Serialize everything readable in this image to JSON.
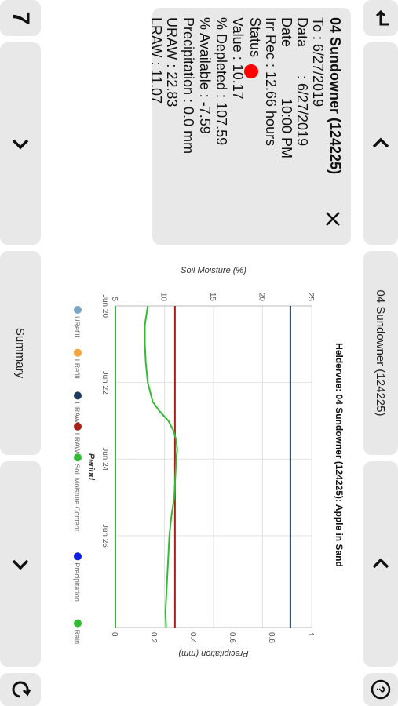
{
  "nav": {
    "back_icon": "return-arrow-icon",
    "badge": "7",
    "refresh_icon": "refresh-icon",
    "help_icon": "help-icon",
    "prev_icon": "chevron-left-icon",
    "next_icon": "chevron-right-icon",
    "summary_label": "Summary",
    "station_label": "04 Sundowner (124225)"
  },
  "info": {
    "title": "04 Sundowner (124225)",
    "close_icon": "close-icon",
    "to": "To : 6/27/2019",
    "data_date_label": "Data",
    "data_date_value": ": 6/27/2019",
    "date_label": "Date",
    "time_value": "10:00 PM",
    "irr_rec": "Irr Rec : 12.66 hours",
    "status_label": "Status",
    "status_color": "#ff0000",
    "value": "Value : 10.17",
    "pct_depleted": "% Depleted : 107.59",
    "pct_available": "% Available : -7.59",
    "precipitation": "Precipitation : 0.0 mm",
    "uraw": "URAW : 22.83",
    "lraw": "LRAW : 11.07"
  },
  "chart_data": {
    "type": "line",
    "title": "Heldervue: 04 Sundowner (124225): Apple in Sand",
    "xlabel": "Period",
    "ylabel": "Soil Moisture (%)",
    "y2label": "Precipitation (mm)",
    "x_ticks": [
      "Jun 20",
      "Jun 22",
      "Jun 24",
      "Jun 26"
    ],
    "xlim": [
      "Jun 20",
      "Jun 28 10:00"
    ],
    "ylim": [
      5,
      25
    ],
    "y_ticks": [
      5,
      10,
      15,
      20,
      25
    ],
    "y2lim": [
      0,
      1
    ],
    "y2_ticks": [
      0,
      0.2,
      0.4,
      0.6,
      0.8,
      1
    ],
    "grid": true,
    "legend_position": "bottom",
    "legend": [
      {
        "name": "URefill",
        "color": "#7aa6c9"
      },
      {
        "name": "LRefill",
        "color": "#f5a33e"
      },
      {
        "name": "URAW",
        "color": "#1f3c5e"
      },
      {
        "name": "LRAW",
        "color": "#a8201a"
      },
      {
        "name": "Soil Moisture Content",
        "color": "#33bb33"
      },
      {
        "name": "Precipitation",
        "color": "#1020e0"
      },
      {
        "name": "Rain",
        "color": "#33bb33"
      }
    ],
    "series": [
      {
        "name": "URAW",
        "color": "#1f3c5e",
        "x_days": [
          0,
          8.4
        ],
        "values": [
          22.83,
          22.83
        ]
      },
      {
        "name": "LRAW",
        "color": "#a8201a",
        "x_days": [
          0,
          8.4
        ],
        "values": [
          11.07,
          11.07
        ]
      },
      {
        "name": "Soil Moisture Content",
        "color": "#33bb33",
        "x_days": [
          0,
          0.5,
          1.0,
          1.5,
          2.0,
          2.5,
          2.75,
          3.0,
          3.25,
          3.5,
          3.75,
          4.0,
          4.5,
          5.0,
          5.5,
          6.0,
          6.5,
          7.0,
          7.5,
          8.0,
          8.4
        ],
        "values": [
          8.3,
          8.0,
          8.0,
          8.1,
          8.3,
          8.8,
          9.5,
          10.4,
          10.9,
          11.2,
          11.3,
          11.2,
          11.1,
          11.0,
          10.7,
          10.5,
          10.4,
          10.3,
          10.2,
          10.1,
          10.17
        ]
      }
    ]
  }
}
